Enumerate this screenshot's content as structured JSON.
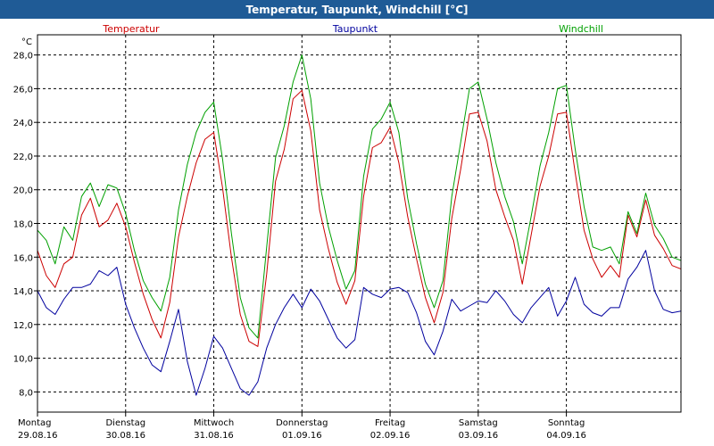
{
  "window": {
    "title": "Temperatur, Taupunkt, Windchill [°C]"
  },
  "chart_data": {
    "type": "line",
    "title": "Temperatur, Taupunkt, Windchill [°C]",
    "ylabel": "°C",
    "ylim": [
      6.8,
      29.2
    ],
    "yticks": [
      "28,0",
      "26,0",
      "24,0",
      "22,0",
      "20,0",
      "18,0",
      "16,0",
      "14,0",
      "12,0",
      "10,0",
      "8,0"
    ],
    "ytick_values": [
      28,
      26,
      24,
      22,
      20,
      18,
      16,
      14,
      12,
      10,
      8
    ],
    "xlim": [
      0,
      7.3
    ],
    "grid": true,
    "legend_placement": "top",
    "x_labels": [
      {
        "day": "Montag",
        "date": "29.08.16",
        "x": 0
      },
      {
        "day": "Dienstag",
        "date": "30.08.16",
        "x": 1
      },
      {
        "day": "Mittwoch",
        "date": "31.08.16",
        "x": 2
      },
      {
        "day": "Donnerstag",
        "date": "01.09.16",
        "x": 3
      },
      {
        "day": "Freitag",
        "date": "02.09.16",
        "x": 4
      },
      {
        "day": "Samstag",
        "date": "03.09.16",
        "x": 5
      },
      {
        "day": "Sonntag",
        "date": "04.09.16",
        "x": 6
      }
    ],
    "series": [
      {
        "name": "Temperatur",
        "color": "#cc0000",
        "points": [
          [
            0.0,
            16.4
          ],
          [
            0.1,
            14.9
          ],
          [
            0.2,
            14.2
          ],
          [
            0.3,
            15.6
          ],
          [
            0.4,
            16.0
          ],
          [
            0.5,
            18.5
          ],
          [
            0.6,
            19.5
          ],
          [
            0.7,
            17.8
          ],
          [
            0.8,
            18.2
          ],
          [
            0.9,
            19.2
          ],
          [
            1.0,
            17.8
          ],
          [
            1.1,
            15.7
          ],
          [
            1.2,
            13.8
          ],
          [
            1.3,
            12.3
          ],
          [
            1.4,
            11.2
          ],
          [
            1.5,
            13.3
          ],
          [
            1.6,
            17.2
          ],
          [
            1.7,
            19.6
          ],
          [
            1.8,
            21.6
          ],
          [
            1.9,
            23.0
          ],
          [
            2.0,
            23.4
          ],
          [
            2.1,
            20.1
          ],
          [
            2.2,
            16.0
          ],
          [
            2.3,
            12.6
          ],
          [
            2.4,
            11.0
          ],
          [
            2.5,
            10.7
          ],
          [
            2.6,
            15.0
          ],
          [
            2.7,
            20.5
          ],
          [
            2.8,
            22.4
          ],
          [
            2.9,
            25.4
          ],
          [
            3.0,
            25.9
          ],
          [
            3.1,
            23.5
          ],
          [
            3.2,
            18.8
          ],
          [
            3.3,
            16.5
          ],
          [
            3.4,
            14.5
          ],
          [
            3.5,
            13.2
          ],
          [
            3.6,
            14.6
          ],
          [
            3.7,
            19.6
          ],
          [
            3.8,
            22.5
          ],
          [
            3.9,
            22.8
          ],
          [
            4.0,
            23.7
          ],
          [
            4.1,
            21.6
          ],
          [
            4.2,
            18.4
          ],
          [
            4.3,
            15.9
          ],
          [
            4.4,
            13.6
          ],
          [
            4.5,
            12.1
          ],
          [
            4.6,
            13.9
          ],
          [
            4.7,
            18.3
          ],
          [
            4.8,
            21.2
          ],
          [
            4.9,
            24.5
          ],
          [
            5.0,
            24.6
          ],
          [
            5.1,
            22.9
          ],
          [
            5.2,
            20.0
          ],
          [
            5.3,
            18.4
          ],
          [
            5.4,
            17.0
          ],
          [
            5.5,
            14.4
          ],
          [
            5.6,
            17.3
          ],
          [
            5.7,
            20.2
          ],
          [
            5.8,
            22.0
          ],
          [
            5.9,
            24.5
          ],
          [
            6.0,
            24.6
          ],
          [
            6.1,
            21.0
          ],
          [
            6.2,
            17.6
          ],
          [
            6.3,
            15.9
          ],
          [
            6.4,
            14.8
          ],
          [
            6.5,
            15.5
          ],
          [
            6.6,
            14.8
          ],
          [
            6.7,
            18.5
          ],
          [
            6.8,
            17.2
          ],
          [
            6.9,
            19.4
          ],
          [
            7.0,
            17.3
          ],
          [
            7.1,
            16.5
          ],
          [
            7.2,
            15.5
          ],
          [
            7.3,
            15.3
          ]
        ]
      },
      {
        "name": "Taupunkt",
        "color": "#00009e",
        "points": [
          [
            0.0,
            14.0
          ],
          [
            0.1,
            13.0
          ],
          [
            0.2,
            12.6
          ],
          [
            0.3,
            13.5
          ],
          [
            0.4,
            14.2
          ],
          [
            0.5,
            14.2
          ],
          [
            0.6,
            14.4
          ],
          [
            0.7,
            15.2
          ],
          [
            0.8,
            14.9
          ],
          [
            0.9,
            15.4
          ],
          [
            1.0,
            13.2
          ],
          [
            1.1,
            11.8
          ],
          [
            1.2,
            10.6
          ],
          [
            1.3,
            9.6
          ],
          [
            1.4,
            9.2
          ],
          [
            1.5,
            11.0
          ],
          [
            1.6,
            12.9
          ],
          [
            1.7,
            9.8
          ],
          [
            1.8,
            7.8
          ],
          [
            1.9,
            9.4
          ],
          [
            2.0,
            11.3
          ],
          [
            2.1,
            10.6
          ],
          [
            2.2,
            9.4
          ],
          [
            2.3,
            8.2
          ],
          [
            2.4,
            7.8
          ],
          [
            2.5,
            8.6
          ],
          [
            2.6,
            10.6
          ],
          [
            2.7,
            12.0
          ],
          [
            2.8,
            13.0
          ],
          [
            2.9,
            13.8
          ],
          [
            3.0,
            13.0
          ],
          [
            3.1,
            14.1
          ],
          [
            3.2,
            13.4
          ],
          [
            3.3,
            12.3
          ],
          [
            3.4,
            11.2
          ],
          [
            3.5,
            10.6
          ],
          [
            3.6,
            11.1
          ],
          [
            3.7,
            14.2
          ],
          [
            3.8,
            13.8
          ],
          [
            3.9,
            13.6
          ],
          [
            4.0,
            14.1
          ],
          [
            4.1,
            14.2
          ],
          [
            4.2,
            13.9
          ],
          [
            4.3,
            12.7
          ],
          [
            4.4,
            11.0
          ],
          [
            4.5,
            10.2
          ],
          [
            4.6,
            11.6
          ],
          [
            4.7,
            13.5
          ],
          [
            4.8,
            12.8
          ],
          [
            4.9,
            13.1
          ],
          [
            5.0,
            13.4
          ],
          [
            5.1,
            13.3
          ],
          [
            5.2,
            14.0
          ],
          [
            5.3,
            13.4
          ],
          [
            5.4,
            12.6
          ],
          [
            5.5,
            12.1
          ],
          [
            5.6,
            13.0
          ],
          [
            5.7,
            13.6
          ],
          [
            5.8,
            14.2
          ],
          [
            5.9,
            12.5
          ],
          [
            6.0,
            13.4
          ],
          [
            6.1,
            14.8
          ],
          [
            6.2,
            13.2
          ],
          [
            6.3,
            12.7
          ],
          [
            6.4,
            12.5
          ],
          [
            6.5,
            13.0
          ],
          [
            6.6,
            13.0
          ],
          [
            6.7,
            14.7
          ],
          [
            6.8,
            15.4
          ],
          [
            6.9,
            16.4
          ],
          [
            7.0,
            14.0
          ],
          [
            7.1,
            12.9
          ],
          [
            7.2,
            12.7
          ],
          [
            7.3,
            12.8
          ]
        ]
      },
      {
        "name": "Windchill",
        "color": "#00a000",
        "points": [
          [
            0.0,
            17.6
          ],
          [
            0.1,
            17.0
          ],
          [
            0.2,
            15.6
          ],
          [
            0.3,
            17.8
          ],
          [
            0.4,
            17.0
          ],
          [
            0.5,
            19.6
          ],
          [
            0.6,
            20.4
          ],
          [
            0.7,
            19.0
          ],
          [
            0.8,
            20.3
          ],
          [
            0.9,
            20.1
          ],
          [
            1.0,
            18.6
          ],
          [
            1.1,
            16.4
          ],
          [
            1.2,
            14.6
          ],
          [
            1.3,
            13.6
          ],
          [
            1.4,
            12.8
          ],
          [
            1.5,
            14.8
          ],
          [
            1.6,
            18.8
          ],
          [
            1.7,
            21.5
          ],
          [
            1.8,
            23.4
          ],
          [
            1.9,
            24.6
          ],
          [
            2.0,
            25.2
          ],
          [
            2.1,
            21.8
          ],
          [
            2.2,
            17.4
          ],
          [
            2.3,
            13.6
          ],
          [
            2.4,
            11.8
          ],
          [
            2.5,
            11.2
          ],
          [
            2.6,
            16.6
          ],
          [
            2.7,
            21.9
          ],
          [
            2.8,
            23.8
          ],
          [
            2.9,
            26.4
          ],
          [
            3.0,
            28.0
          ],
          [
            3.1,
            25.4
          ],
          [
            3.2,
            20.4
          ],
          [
            3.3,
            17.8
          ],
          [
            3.4,
            15.8
          ],
          [
            3.5,
            14.1
          ],
          [
            3.6,
            15.2
          ],
          [
            3.7,
            20.8
          ],
          [
            3.8,
            23.6
          ],
          [
            3.9,
            24.2
          ],
          [
            4.0,
            25.2
          ],
          [
            4.1,
            23.4
          ],
          [
            4.2,
            19.5
          ],
          [
            4.3,
            16.8
          ],
          [
            4.4,
            14.4
          ],
          [
            4.5,
            13.0
          ],
          [
            4.6,
            14.6
          ],
          [
            4.7,
            19.6
          ],
          [
            4.8,
            22.8
          ],
          [
            4.9,
            26.0
          ],
          [
            5.0,
            26.4
          ],
          [
            5.1,
            24.2
          ],
          [
            5.2,
            21.6
          ],
          [
            5.3,
            19.6
          ],
          [
            5.4,
            18.1
          ],
          [
            5.5,
            15.6
          ],
          [
            5.6,
            18.4
          ],
          [
            5.7,
            21.4
          ],
          [
            5.8,
            23.4
          ],
          [
            5.9,
            26.0
          ],
          [
            6.0,
            26.2
          ],
          [
            6.1,
            22.4
          ],
          [
            6.2,
            19.0
          ],
          [
            6.3,
            16.6
          ],
          [
            6.4,
            16.4
          ],
          [
            6.5,
            16.6
          ],
          [
            6.6,
            15.6
          ],
          [
            6.7,
            18.7
          ],
          [
            6.8,
            17.4
          ],
          [
            6.9,
            19.8
          ],
          [
            7.0,
            17.9
          ],
          [
            7.1,
            17.1
          ],
          [
            7.2,
            16.0
          ],
          [
            7.3,
            15.8
          ]
        ]
      }
    ]
  }
}
